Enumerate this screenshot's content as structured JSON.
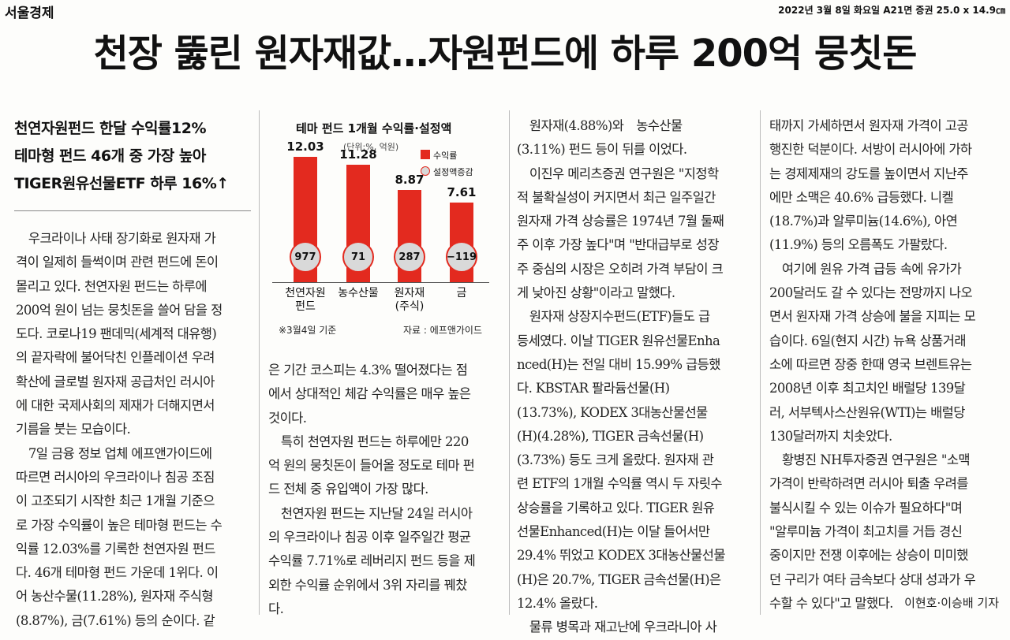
{
  "masthead": "서울경제",
  "dateline": "2022년 3월 8일 화요일 A21면 증권 25.0 x 14.9㎝",
  "headline": "천장 뚫린 원자재값…자원펀드에 하루 200억 뭉칫돈",
  "deck": [
    "천연자원펀드 한달 수익률12%",
    "테마형 펀드 46개 중 가장 높아",
    "TIGER원유선물ETF 하루 16%↑"
  ],
  "col1": [
    "　우크라이나 사태 장기화로 원자재 가",
    "격이 일제히 들썩이며 관련 펀드에 돈이",
    "몰리고 있다. 천연자원 펀드는 하루에",
    "200억 원이 넘는 뭉칫돈을 쓸어 담을 정",
    "도다. 코로나19 팬데믹(세계적 대유행)",
    "의 끝자락에 불어닥친 인플레이션 우려",
    "확산에 글로벌 원자재 공급처인 러시아",
    "에 대한 국제사회의 제재가 더해지면서",
    "기름을 붓는 모습이다.",
    "　7일 금융 정보 업체 에프앤가이드에",
    "따르면 러시아의 우크라이나 침공 조짐",
    "이 고조되기 시작한 최근 1개월 기준으",
    "로 가장 수익률이 높은 테마형 펀드는 수",
    "익률 12.03%를 기록한 천연자원 펀드",
    "다. 46개 테마형 펀드 가운데 1위다. 이",
    "어 농산수물(11.28%), 원자재 주식형",
    "(8.87%), 금(7.61%) 등의 순이다. 같"
  ],
  "col2": [
    "은 기간 코스피는 4.3% 떨어졌다는 점",
    "에서 상대적인 체감 수익률은 매우 높은",
    "것이다.",
    "　특히 천연자원 펀드는 하루에만 220",
    "억 원의 뭉칫돈이 들어올 정도로 테마 펀",
    "드 전체 중 유입액이 가장 많다.",
    "　천연자원 펀드는 지난달 24일 러시아",
    "의 우크라이나 침공 이후 일주일간 평균",
    "수익률 7.71%로 레버리지 펀드 등을 제",
    "외한 수익률 순위에서 3위 자리를 꿰찼",
    "다."
  ],
  "col3": [
    "　원자재(4.88%)와　농수산물",
    "(3.11%) 펀드 등이 뒤를 이었다.",
    "　이진우 메리츠증권 연구원은 \"지정학",
    "적 불확실성이 커지면서 최근 일주일간",
    "원자재 가격 상승률은 1974년 7월 둘째",
    "주 이후 가장 높다\"며 \"반대급부로 성장",
    "주 중심의 시장은 오히려 가격 부담이 크",
    "게 낮아진 상황\"이라고 말했다.",
    "　원자재 상장지수펀드(ETF)들도 급",
    "등세였다. 이날 TIGER 원유선물Enha",
    "nced(H)는 전일 대비 15.99% 급등했",
    "다. KBSTAR 팔라듐선물(H)",
    "(13.73%), KODEX 3대농산물선물",
    "(H)(4.28%), TIGER 금속선물(H)",
    "(3.73%) 등도 크게 올랐다. 원자재 관",
    "련 ETF의 1개월 수익률 역시 두 자릿수",
    "상승률을 기록하고 있다. TIGER 원유",
    "선물Enhanced(H)는 이달 들어서만",
    "29.4% 뛰었고 KODEX 3대농산물선물",
    "(H)은 20.7%, TIGER 금속선물(H)은",
    "12.4% 올랐다.",
    "　물류 병목과 재고난에 우크라니아 사"
  ],
  "col4": [
    "태까지 가세하면서 원자재 가격이 고공",
    "행진한 덕분이다. 서방이 러시아에 가하",
    "는 경제제재의 강도를 높이면서 지난주",
    "에만 소맥은 40.6% 급등했다. 니켈",
    "(18.7%)과 알루미늄(14.6%), 아연",
    "(11.9%) 등의 오름폭도 가팔랐다.",
    "　여기에 원유 가격 급등 속에 유가가",
    "200달러도 갈 수 있다는 전망까지 나오",
    "면서 원자재 가격 상승에 불을 지피는 모",
    "습이다. 6일(현지 시간) 뉴욕 상품거래",
    "소에 따르면 장중 한때 영국 브렌트유는",
    "2008년 이후 최고치인 배럴당 139달",
    "러, 서부텍사스산원유(WTI)는 배럴당",
    "130달러까지 치솟았다.",
    "　황병진 NH투자증권 연구원은 \"소맥",
    "가격이 반락하려면 러시아 퇴출 우려를",
    "불식시킬 수 있는 이슈가 필요하다\"며",
    "\"알루미늄 가격이 최고치를 거듭 경신",
    "중이지만 전쟁 이후에는 상승이 미미했",
    "던 구리가 여타 금속보다 상대 성과가 우",
    "수할 수 있다\"고 말했다."
  ],
  "byline": "이현호·이승배 기자",
  "chart_data": {
    "type": "bar",
    "title": "테마 펀드 1개월 수익률·설정액",
    "unit": "(단위:%, 억원)",
    "legend": [
      "수익률",
      "설정액증감"
    ],
    "categories": [
      "천연자원\n펀드",
      "농수산물",
      "원자재\n(주식)",
      "금"
    ],
    "series": [
      {
        "name": "수익률",
        "values": [
          12.03,
          11.28,
          8.87,
          7.61
        ]
      },
      {
        "name": "설정액증감",
        "values": [
          977,
          71,
          287,
          -119
        ]
      }
    ],
    "value_labels": [
      "12.03",
      "11.28",
      "8.87",
      "7.61"
    ],
    "circle_labels": [
      "977",
      "71",
      "287",
      "−119"
    ],
    "ylim": [
      0,
      14
    ],
    "note": "※3월4일 기준",
    "source": "자료 : 에프앤가이드",
    "colors": {
      "bar": "#e32a1f",
      "circle": "#d9d9d9"
    }
  }
}
